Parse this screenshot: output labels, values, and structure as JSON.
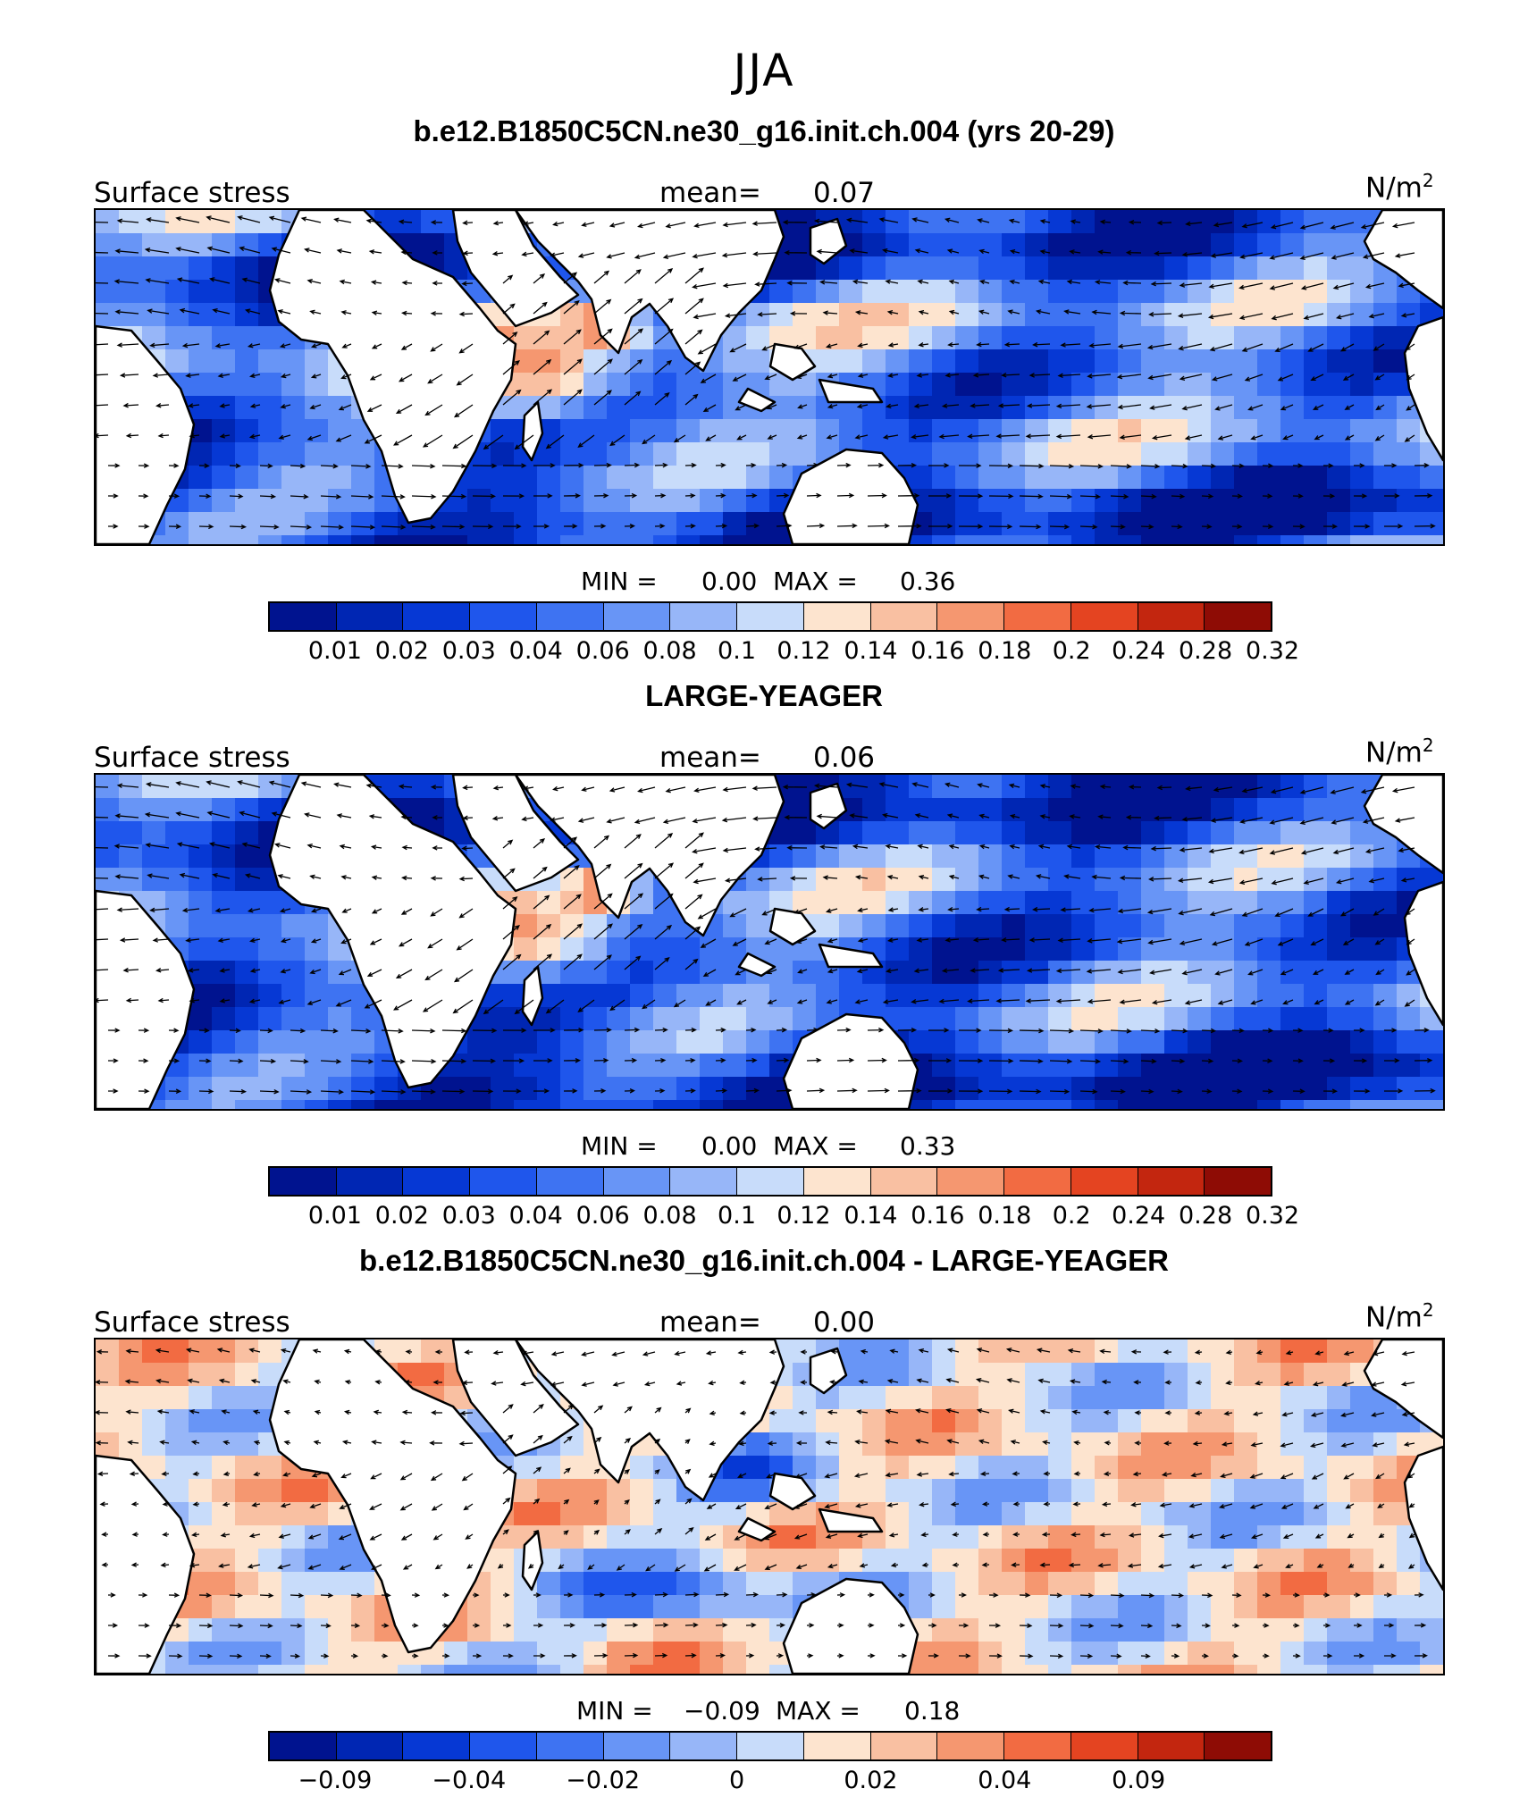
{
  "figure": {
    "season": "JJA"
  },
  "panels": [
    {
      "title": "b.e12.B1850C5CN.ne30_g16.init.ch.004 (yrs 20-29)",
      "variable_label": "Surface stress",
      "mean_label": "mean=",
      "mean_value": "0.07",
      "units_base": "N/m",
      "units_exp": "2",
      "min_label": "MIN =",
      "min_value": "0.00",
      "max_label": "MAX =",
      "max_value": "0.36",
      "kind": "abs",
      "ticks": [
        "0.01",
        "0.02",
        "0.03",
        "0.04",
        "0.06",
        "0.08",
        "0.1",
        "0.12",
        "0.14",
        "0.16",
        "0.18",
        "0.2",
        "0.24",
        "0.28",
        "0.32"
      ]
    },
    {
      "title": "LARGE-YEAGER",
      "variable_label": "Surface stress",
      "mean_label": "mean=",
      "mean_value": "0.06",
      "units_base": "N/m",
      "units_exp": "2",
      "min_label": "MIN =",
      "min_value": "0.00",
      "max_label": "MAX =",
      "max_value": "0.33",
      "kind": "abs",
      "ticks": [
        "0.01",
        "0.02",
        "0.03",
        "0.04",
        "0.06",
        "0.08",
        "0.1",
        "0.12",
        "0.14",
        "0.16",
        "0.18",
        "0.2",
        "0.24",
        "0.28",
        "0.32"
      ]
    },
    {
      "title": "b.e12.B1850C5CN.ne30_g16.init.ch.004 - LARGE-YEAGER",
      "variable_label": "Surface stress",
      "mean_label": "mean=",
      "mean_value": "0.00",
      "units_base": "N/m",
      "units_exp": "2",
      "min_label": "MIN =",
      "min_value": "−0.09",
      "max_label": "MAX =",
      "max_value": "0.18",
      "kind": "diff",
      "ticks": [
        "−0.09",
        "",
        "−0.04",
        "",
        "−0.02",
        "",
        "0",
        "",
        "0.02",
        "",
        "0.04",
        "",
        "0.09",
        "",
        ""
      ]
    }
  ],
  "colorscale": [
    "#00138f",
    "#0026b3",
    "#0638d4",
    "#1f56ec",
    "#3e73f2",
    "#6895f6",
    "#97b6f8",
    "#c8dcfa",
    "#fde4cf",
    "#f9c0a2",
    "#f59770",
    "#f26b42",
    "#e44421",
    "#c3260f",
    "#8e0c05"
  ],
  "land_color": "#ffffff"
}
